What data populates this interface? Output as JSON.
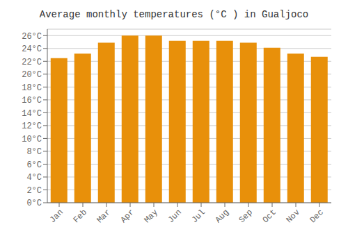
{
  "chart_data": {
    "type": "bar",
    "title": "Average monthly temperatures (°C ) in Gualjoco",
    "categories": [
      "Jan",
      "Feb",
      "Mar",
      "Apr",
      "May",
      "Jun",
      "Jul",
      "Aug",
      "Sep",
      "Oct",
      "Nov",
      "Dec"
    ],
    "values": [
      22.5,
      23.2,
      24.9,
      26.0,
      26.0,
      25.2,
      25.2,
      25.2,
      24.9,
      24.1,
      23.2,
      22.7
    ],
    "color": "#E8900A",
    "ylim": [
      0,
      27
    ],
    "yticks": [
      {
        "value": 0,
        "label": "0°C"
      },
      {
        "value": 2,
        "label": "2°C"
      },
      {
        "value": 4,
        "label": "4°C"
      },
      {
        "value": 6,
        "label": "6°C"
      },
      {
        "value": 8,
        "label": "8°C"
      },
      {
        "value": 10,
        "label": "10°C"
      },
      {
        "value": 12,
        "label": "12°C"
      },
      {
        "value": 14,
        "label": "14°C"
      },
      {
        "value": 16,
        "label": "16°C"
      },
      {
        "value": 18,
        "label": "18°C"
      },
      {
        "value": 20,
        "label": "20°C"
      },
      {
        "value": 22,
        "label": "22°C"
      },
      {
        "value": 24,
        "label": "24°C"
      },
      {
        "value": 26,
        "label": "26°C"
      }
    ],
    "grid": true
  }
}
